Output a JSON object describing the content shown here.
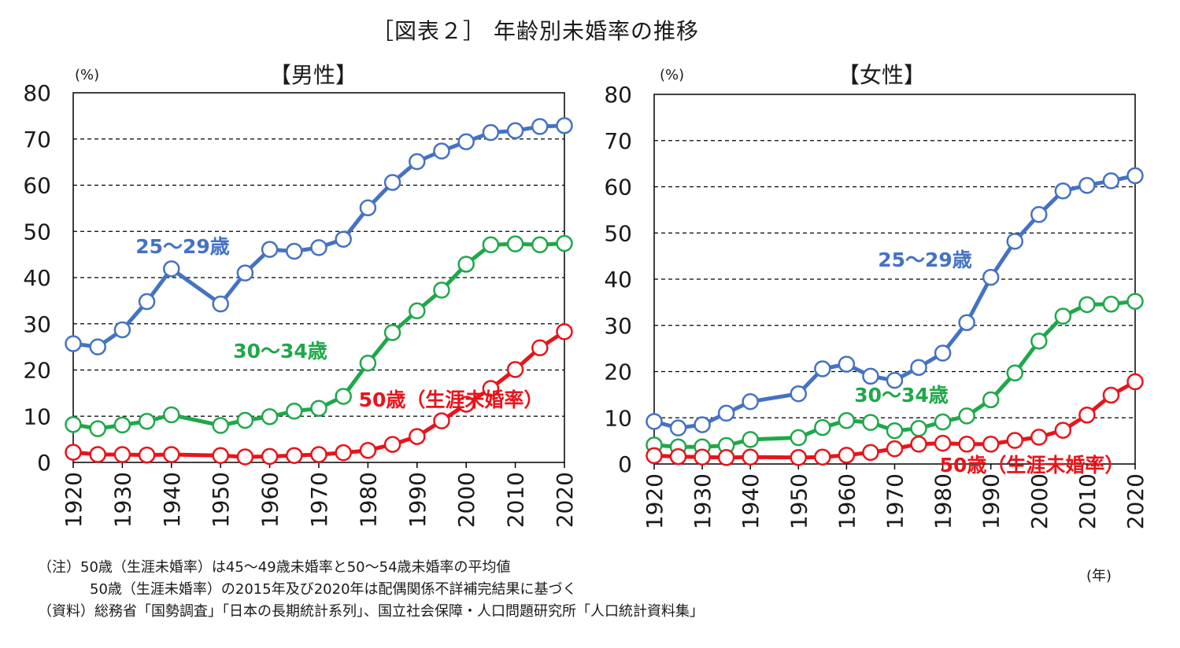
{
  "title": "［図表２］ 年齢別未婚率の推移",
  "x_unit": "(年)",
  "notes": [
    "（注）50歳（生涯未婚率）は45～49歳未婚率と50～54歳未婚率の平均値",
    "50歳（生涯未婚率）の2015年及び2020年は配偶関係不詳補完結果に基づく",
    "（資料）総務省「国勢調査」「日本の長期統計系列」、国立社会保障・人口問題研究所「人口統計資料集」"
  ],
  "colors": {
    "blue": "#4472C4",
    "green": "#1FA84A",
    "red": "#E8141B"
  },
  "chart_data": [
    {
      "type": "line",
      "title": "【男性】",
      "ylabel": "(%)",
      "ylim": [
        0,
        80
      ],
      "yticks": [
        0,
        10,
        20,
        30,
        40,
        50,
        60,
        70,
        80
      ],
      "xlim": [
        1920,
        2020
      ],
      "xticks": [
        1920,
        1930,
        1940,
        1950,
        1960,
        1970,
        1980,
        1990,
        2000,
        2010,
        2020
      ],
      "grid": "horizontal dashed",
      "x": [
        1920,
        1925,
        1930,
        1935,
        1940,
        1950,
        1955,
        1960,
        1965,
        1970,
        1975,
        1980,
        1985,
        1990,
        1995,
        2000,
        2005,
        2010,
        2015,
        2020
      ],
      "series": [
        {
          "name": "25～29歳",
          "color": "#4472C4",
          "values": [
            25.7,
            25.0,
            28.7,
            34.8,
            41.9,
            34.3,
            41.0,
            46.1,
            45.7,
            46.5,
            48.3,
            55.1,
            60.6,
            65.1,
            67.4,
            69.4,
            71.4,
            71.8,
            72.7,
            72.9
          ]
        },
        {
          "name": "30～34歳",
          "color": "#1FA84A",
          "values": [
            8.2,
            7.3,
            8.1,
            8.9,
            10.3,
            8.0,
            9.1,
            9.9,
            11.1,
            11.7,
            14.3,
            21.5,
            28.1,
            32.8,
            37.3,
            42.9,
            47.1,
            47.3,
            47.1,
            47.4
          ]
        },
        {
          "name": "50歳（生涯未婚率）",
          "color": "#E8141B",
          "values": [
            2.2,
            1.7,
            1.7,
            1.6,
            1.7,
            1.5,
            1.2,
            1.3,
            1.5,
            1.7,
            2.1,
            2.6,
            3.9,
            5.6,
            9.0,
            12.6,
            16.0,
            20.1,
            24.8,
            28.3
          ]
        }
      ],
      "labels": [
        {
          "series": 0,
          "text": "25～29歳"
        },
        {
          "series": 1,
          "text": "30～34歳"
        },
        {
          "series": 2,
          "text": "50歳（生涯未婚率）"
        }
      ]
    },
    {
      "type": "line",
      "title": "【女性】",
      "ylabel": "(%)",
      "ylim": [
        0,
        80
      ],
      "yticks": [
        0,
        10,
        20,
        30,
        40,
        50,
        60,
        70,
        80
      ],
      "xlim": [
        1920,
        2020
      ],
      "xticks": [
        1920,
        1930,
        1940,
        1950,
        1960,
        1970,
        1980,
        1990,
        2000,
        2010,
        2020
      ],
      "grid": "horizontal dashed",
      "x": [
        1920,
        1925,
        1930,
        1935,
        1940,
        1950,
        1955,
        1960,
        1965,
        1970,
        1975,
        1980,
        1985,
        1990,
        1995,
        2000,
        2005,
        2010,
        2015,
        2020
      ],
      "series": [
        {
          "name": "25～29歳",
          "color": "#4472C4",
          "values": [
            9.2,
            7.8,
            8.5,
            11.0,
            13.5,
            15.2,
            20.6,
            21.6,
            19.0,
            18.1,
            20.9,
            24.0,
            30.6,
            40.4,
            48.2,
            54.0,
            59.1,
            60.3,
            61.3,
            62.4
          ]
        },
        {
          "name": "30～34歳",
          "color": "#1FA84A",
          "values": [
            4.1,
            3.7,
            3.7,
            4.0,
            5.3,
            5.7,
            7.9,
            9.4,
            9.0,
            7.2,
            7.7,
            9.1,
            10.4,
            13.9,
            19.7,
            26.6,
            32.0,
            34.5,
            34.6,
            35.2
          ]
        },
        {
          "name": "50歳（生涯未婚率）",
          "color": "#E8141B",
          "values": [
            1.8,
            1.6,
            1.5,
            1.4,
            1.5,
            1.4,
            1.5,
            1.9,
            2.5,
            3.3,
            4.3,
            4.5,
            4.3,
            4.3,
            5.1,
            5.8,
            7.3,
            10.6,
            14.9,
            17.8
          ]
        }
      ],
      "labels": [
        {
          "series": 0,
          "text": "25～29歳"
        },
        {
          "series": 1,
          "text": "30～34歳"
        },
        {
          "series": 2,
          "text": "50歳（生涯未婚率）"
        }
      ]
    }
  ]
}
